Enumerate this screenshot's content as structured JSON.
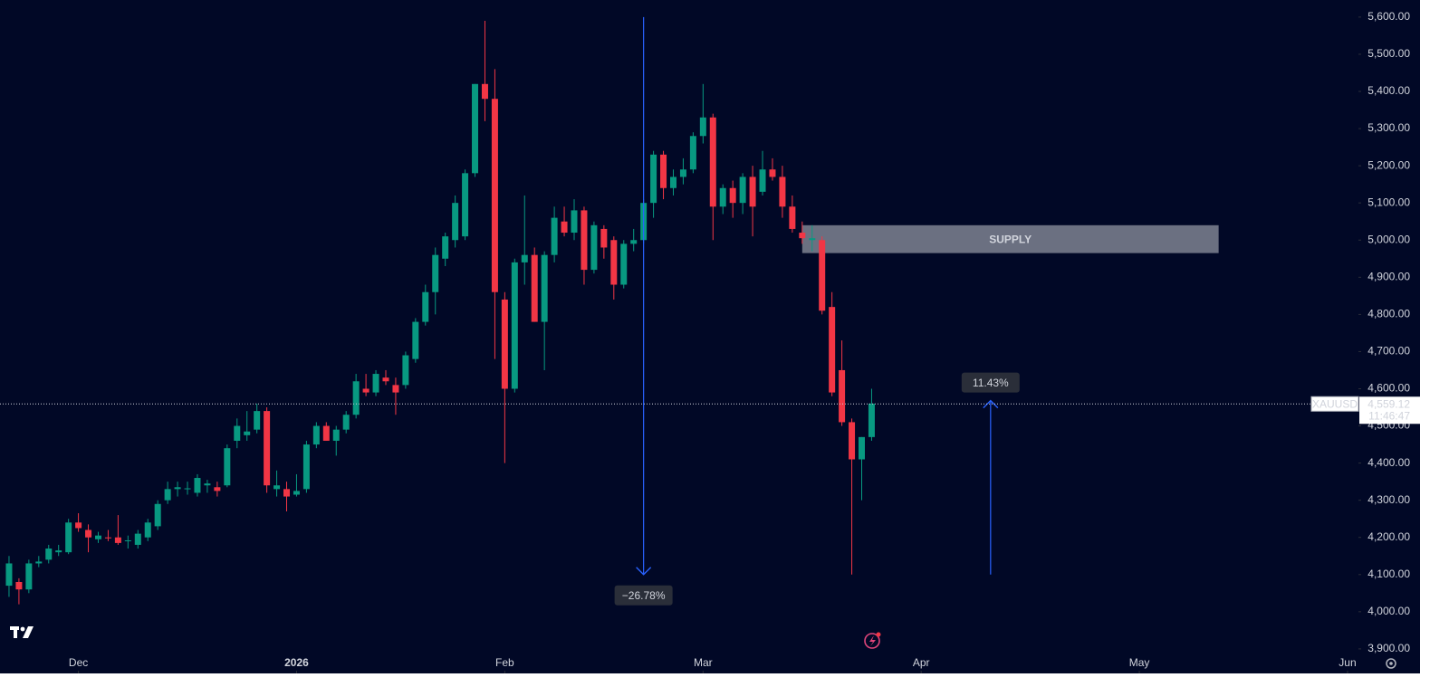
{
  "chart_data": {
    "type": "candlestick",
    "symbol": "XAUUSD",
    "x": [
      0,
      1,
      2,
      3,
      4,
      5,
      6,
      7,
      8,
      9,
      10,
      11,
      12,
      13,
      14,
      15,
      16,
      17,
      18,
      19,
      20,
      21,
      22,
      23,
      24,
      25,
      26,
      27,
      28,
      29,
      30,
      31,
      32,
      33,
      34,
      35,
      36,
      37,
      38,
      39,
      40,
      41,
      42,
      43,
      44,
      45,
      46,
      47,
      48,
      49,
      50,
      51,
      52,
      53,
      54,
      55,
      56,
      57,
      58,
      59,
      60,
      61,
      62,
      63,
      64,
      65,
      66,
      67,
      68,
      69,
      70,
      71,
      72,
      73,
      74,
      75,
      76,
      77,
      78,
      79,
      80,
      81,
      82,
      83,
      84,
      85,
      86,
      87
    ],
    "open": [
      4070,
      4080,
      4060,
      4130,
      4140,
      4160,
      4160,
      4240,
      4220,
      4195,
      4200,
      4200,
      4190,
      4180,
      4200,
      4230,
      4300,
      4330,
      4330,
      4320,
      4340,
      4335,
      4340,
      4460,
      4475,
      4490,
      4540,
      4330,
      4330,
      4315,
      4330,
      4450,
      4500,
      4460,
      4490,
      4530,
      4600,
      4590,
      4630,
      4610,
      4610,
      4680,
      4780,
      4860,
      4950,
      5000,
      5010,
      5180,
      5420,
      5380,
      4840,
      4600,
      4940,
      4960,
      4780,
      4960,
      5050,
      5020,
      5080,
      4920,
      5030,
      5000,
      4880,
      4990,
      5000,
      5100,
      5230,
      5140,
      5170,
      5190,
      5280,
      5330,
      5090,
      5140,
      5100,
      5170,
      5130,
      5190,
      5170,
      5090,
      5020,
      5000,
      5000,
      4820,
      4650,
      4510,
      4410,
      4470
    ],
    "high": [
      4150,
      4090,
      4140,
      4150,
      4180,
      4180,
      4250,
      4265,
      4235,
      4215,
      4220,
      4260,
      4205,
      4220,
      4250,
      4300,
      4350,
      4350,
      4350,
      4370,
      4355,
      4350,
      4450,
      4520,
      4540,
      4560,
      4550,
      4380,
      4350,
      4370,
      4460,
      4510,
      4510,
      4500,
      4540,
      4640,
      4640,
      4650,
      4650,
      4630,
      4700,
      4790,
      4880,
      4980,
      5020,
      5120,
      5190,
      5420,
      5590,
      5460,
      4860,
      4950,
      5120,
      4980,
      4970,
      5090,
      5090,
      5110,
      5090,
      5050,
      5040,
      5010,
      5000,
      5030,
      5110,
      5240,
      5240,
      5190,
      5220,
      5290,
      5420,
      5340,
      5150,
      5160,
      5180,
      5200,
      5240,
      5220,
      5200,
      5120,
      5050,
      5040,
      5010,
      4860,
      4730,
      4520,
      4470,
      4600
    ],
    "low": [
      4040,
      4020,
      4050,
      4120,
      4130,
      4150,
      4155,
      4215,
      4160,
      4185,
      4190,
      4180,
      4170,
      4170,
      4190,
      4220,
      4290,
      4310,
      4315,
      4310,
      4320,
      4310,
      4335,
      4440,
      4460,
      4480,
      4320,
      4310,
      4270,
      4310,
      4320,
      4440,
      4460,
      4420,
      4480,
      4520,
      4580,
      4580,
      4610,
      4530,
      4600,
      4670,
      4770,
      4800,
      4930,
      4980,
      5000,
      5170,
      5320,
      4680,
      4400,
      4590,
      4880,
      4780,
      4650,
      4940,
      5010,
      5000,
      4880,
      4910,
      4950,
      4840,
      4870,
      4970,
      4990,
      5060,
      5110,
      5120,
      5150,
      5180,
      5260,
      5000,
      5070,
      5060,
      5070,
      5010,
      5120,
      5160,
      5060,
      5020,
      4990,
      4970,
      4800,
      4580,
      4500,
      4100,
      4300,
      4460
    ],
    "close": [
      4130,
      4060,
      4130,
      4135,
      4170,
      4165,
      4240,
      4225,
      4200,
      4205,
      4198,
      4185,
      4192,
      4210,
      4240,
      4290,
      4330,
      4335,
      4332,
      4360,
      4345,
      4325,
      4440,
      4500,
      4485,
      4540,
      4340,
      4340,
      4310,
      4325,
      4450,
      4500,
      4460,
      4490,
      4530,
      4620,
      4590,
      4640,
      4620,
      4590,
      4690,
      4780,
      4860,
      4960,
      5010,
      5100,
      5180,
      5420,
      5380,
      4860,
      4600,
      4940,
      4960,
      4780,
      4960,
      5060,
      5020,
      5080,
      4920,
      5040,
      4980,
      4880,
      4990,
      5000,
      5100,
      5230,
      5140,
      5170,
      5190,
      5280,
      5330,
      5090,
      5140,
      5100,
      5170,
      5090,
      5190,
      5170,
      5090,
      5030,
      5005,
      5005,
      4810,
      4590,
      4510,
      4410,
      4470,
      4560
    ],
    "up_color": "#089981",
    "down_color": "#f23645",
    "xlim": [
      -0.91,
      136.1
    ],
    "xticks": [
      {
        "value": 7,
        "label": "Dec"
      },
      {
        "value": 29,
        "label": "2026"
      },
      {
        "value": 50,
        "label": "Feb"
      },
      {
        "value": 70,
        "label": "Mar"
      },
      {
        "value": 92,
        "label": "Apr"
      },
      {
        "value": 114,
        "label": "May"
      },
      {
        "value": 135,
        "label": "Jun"
      }
    ],
    "ylim": [
      3834,
      5646
    ],
    "yticks": [
      {
        "value": 3900,
        "label": "3,900.00"
      },
      {
        "value": 4000,
        "label": "4,000.00"
      },
      {
        "value": 4100,
        "label": "4,100.00"
      },
      {
        "value": 4200,
        "label": "4,200.00"
      },
      {
        "value": 4300,
        "label": "4,300.00"
      },
      {
        "value": 4400,
        "label": "4,400.00"
      },
      {
        "value": 4500,
        "label": "4,500.00"
      },
      {
        "value": 4600,
        "label": "4,600.00"
      },
      {
        "value": 4700,
        "label": "4,700.00"
      },
      {
        "value": 4800,
        "label": "4,800.00"
      },
      {
        "value": 4900,
        "label": "4,900.00"
      },
      {
        "value": 5000,
        "label": "5,000.00"
      },
      {
        "value": 5100,
        "label": "5,100.00"
      },
      {
        "value": 5200,
        "label": "5,200.00"
      },
      {
        "value": 5300,
        "label": "5,300.00"
      },
      {
        "value": 5400,
        "label": "5,400.00"
      },
      {
        "value": 5500,
        "label": "5,500.00"
      },
      {
        "value": 5600,
        "label": "5,600.00"
      }
    ],
    "grid": false,
    "last_price": {
      "value": 4559.12,
      "label": "4,559.12"
    },
    "countdown": "11:46:47",
    "annotations": [
      {
        "label": "−26.78%",
        "x": 64,
        "from": 5600,
        "to": 4100,
        "color": "#2962ff"
      },
      {
        "label": "11.43%",
        "x": 99,
        "from": 4100,
        "to": 4568,
        "color": "#2962ff"
      }
    ],
    "zone": {
      "label": "SUPPLY",
      "x": [
        80,
        122
      ],
      "price": [
        4965,
        5040
      ]
    }
  }
}
